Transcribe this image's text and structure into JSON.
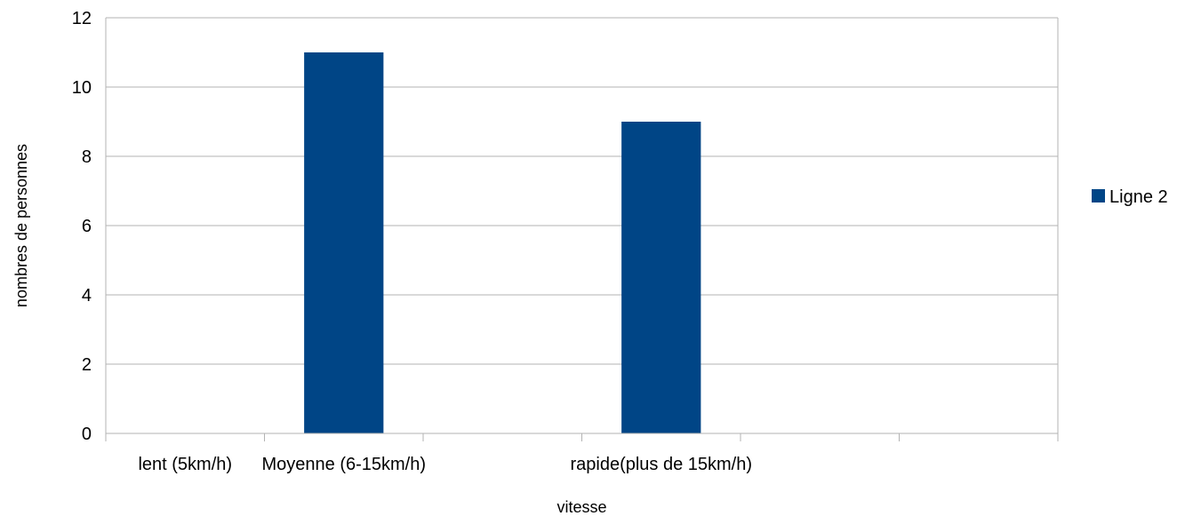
{
  "chart_data": {
    "type": "bar",
    "title": "",
    "xlabel": "vitesse",
    "ylabel": "nombres de personnes",
    "categories": [
      "lent (5km/h)",
      "Moyenne (6-15km/h)",
      "",
      "rapide(plus de 15km/h)",
      "",
      ""
    ],
    "series": [
      {
        "name": "Ligne 2",
        "color": "#004586",
        "values": [
          0,
          11,
          0,
          9,
          0,
          0
        ]
      }
    ],
    "ylim": [
      0,
      12
    ],
    "yticks": [
      0,
      2,
      4,
      6,
      8,
      10,
      12
    ],
    "grid": true,
    "legend_position": "right"
  }
}
